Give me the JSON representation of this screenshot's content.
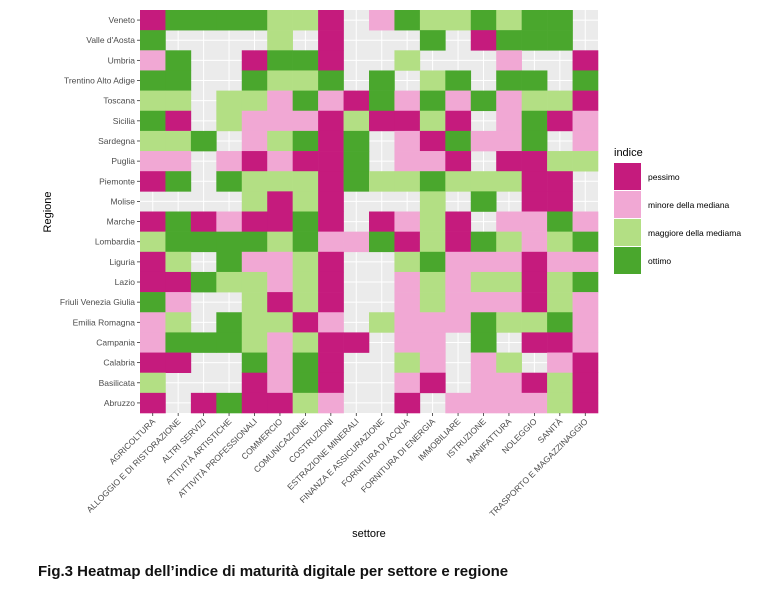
{
  "caption": "Fig.3 Heatmap dell’indice di maturità digitale per settore e regione",
  "chart_data": {
    "type": "heatmap",
    "xlabel": "settore",
    "ylabel": "Regione",
    "x_categories": [
      "AGRICOLTURA",
      "ALLOGGIO E DI RISTORAZIONE",
      "ALTRI SERVIZI",
      "ATTIVITÀ ARTISTICHE",
      "ATTIVITÀ PROFESSIONALI",
      "COMMERCIO",
      "COMUNICAZIONE",
      "COSTRUZIONI",
      "ESTRAZIONE MINERALI",
      "FINANZA E ASSICURAZIONE",
      "FORNITURA DI ACQUA",
      "FORNITURA DI ENERGIA",
      "IMMOBILIARE",
      "ISTRUZIONE",
      "MANIFATTURA",
      "NOLEGGIO",
      "SANITÀ",
      "TRASPORTO E MAGAZZINAGGIO"
    ],
    "y_categories": [
      "Veneto",
      "Valle d'Aosta",
      "Umbria",
      "Trentino Alto Adige",
      "Toscana",
      "Sicilia",
      "Sardegna",
      "Puglia",
      "Piemonte",
      "Molise",
      "Marche",
      "Lombardia",
      "Liguria",
      "Lazio",
      "Friuli Venezia Giulia",
      "Emilia Romagna",
      "Campania",
      "Calabria",
      "Basilicata",
      "Abruzzo"
    ],
    "legend": {
      "title": "indice",
      "placement": "right",
      "levels": [
        {
          "label": "pessimo",
          "color": "#c51b7d"
        },
        {
          "label": "minore della mediana",
          "color": "#f1a8d4"
        },
        {
          "label": "maggiore della mediama",
          "color": "#b3df84"
        },
        {
          "label": "ottimo",
          "color": "#4aa72d"
        }
      ]
    },
    "missing_color": "#ebebeb",
    "value_key": "P = pessimo, m = minore della mediana, M = maggiore della mediama, O = ottimo, . = nessun valore",
    "values": [
      "POOOOMMP.mOMMOMOO.",
      "O....M.P...O.POOO.",
      "mO..POOP..M...m..P",
      "OO..OMMO.O.MO.OO.O",
      "MM.MMmOmPOmOmOmMMP",
      "OP.MmmmPMPPMP.mOPm",
      "MMO.mMOPO.mPOmmO.m",
      "mm.mPmPPO.mmP.PPMM",
      "PO.OMMMPOMMOMMMPP.",
      "....MPMP...M.O.PP.",
      "POPmPPOP.PmMP.mmOm",
      "MOOOOMOmmOPMPOMmMO",
      "PM.OmmMP..MOmmmPmm",
      "PPOMMmMP..mMmMMPMO",
      "Om..MPMP..mMmmmPMm",
      "mM.OMMPm.MmmmOMMOm",
      "mOOOMmMPP.mm.O.PPm",
      "PP..OmOP..Mm.mM.mP",
      "M...PmOP..mP.mmPMP",
      "P.POPPMm..P.mmmmMP"
    ]
  }
}
